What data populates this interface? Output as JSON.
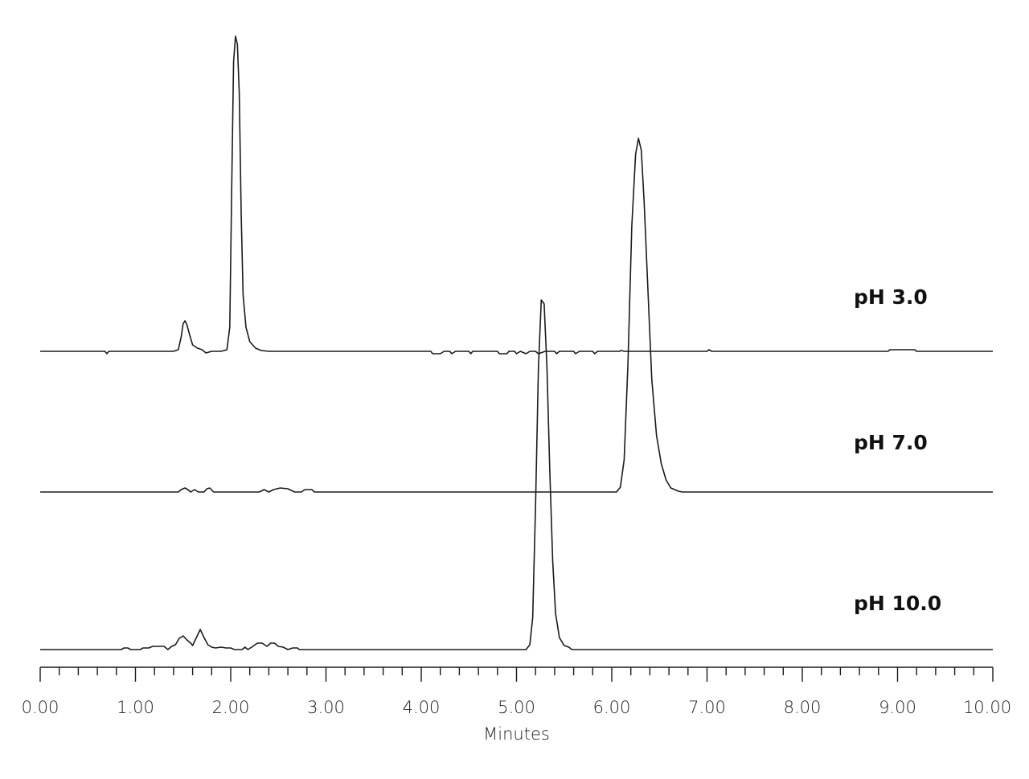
{
  "chart_data": {
    "type": "line",
    "xlabel": "Minutes",
    "ylabel": "",
    "xlim": [
      0,
      10
    ],
    "x_ticks": [
      "0.00",
      "1.00",
      "2.00",
      "3.00",
      "4.00",
      "5.00",
      "6.00",
      "7.00",
      "8.00",
      "9.00",
      "10.00"
    ],
    "minor_ticks_per_major": 5,
    "grid": false,
    "y_axis_shown": false,
    "stroke_color": "#1a1a1a",
    "series": [
      {
        "name": "pH 3.0",
        "baseline": 0,
        "points": [
          [
            0.0,
            0
          ],
          [
            0.68,
            0
          ],
          [
            0.7,
            -3
          ],
          [
            0.72,
            0
          ],
          [
            1.4,
            0
          ],
          [
            1.45,
            2
          ],
          [
            1.48,
            18
          ],
          [
            1.5,
            34
          ],
          [
            1.52,
            38
          ],
          [
            1.54,
            33
          ],
          [
            1.57,
            20
          ],
          [
            1.6,
            8
          ],
          [
            1.65,
            4
          ],
          [
            1.7,
            2
          ],
          [
            1.74,
            -2
          ],
          [
            1.8,
            0
          ],
          [
            1.9,
            0
          ],
          [
            1.96,
            2
          ],
          [
            1.99,
            30
          ],
          [
            2.01,
            200
          ],
          [
            2.03,
            360
          ],
          [
            2.05,
            392
          ],
          [
            2.07,
            382
          ],
          [
            2.09,
            320
          ],
          [
            2.11,
            170
          ],
          [
            2.13,
            70
          ],
          [
            2.16,
            30
          ],
          [
            2.2,
            12
          ],
          [
            2.26,
            4
          ],
          [
            2.32,
            1
          ],
          [
            2.4,
            0
          ],
          [
            4.1,
            0
          ],
          [
            4.12,
            -3
          ],
          [
            4.2,
            -3
          ],
          [
            4.24,
            0
          ],
          [
            4.3,
            0
          ],
          [
            4.32,
            -3
          ],
          [
            4.36,
            0
          ],
          [
            4.5,
            0
          ],
          [
            4.52,
            -3
          ],
          [
            4.54,
            0
          ],
          [
            4.8,
            0
          ],
          [
            4.82,
            -3
          ],
          [
            4.9,
            -3
          ],
          [
            4.92,
            0
          ],
          [
            4.98,
            0
          ],
          [
            5.0,
            -3
          ],
          [
            5.04,
            0
          ],
          [
            5.1,
            -3
          ],
          [
            5.14,
            0
          ],
          [
            5.2,
            0
          ],
          [
            5.23,
            -3
          ],
          [
            5.3,
            0
          ],
          [
            5.4,
            0
          ],
          [
            5.42,
            -3
          ],
          [
            5.45,
            0
          ],
          [
            5.6,
            0
          ],
          [
            5.62,
            -3
          ],
          [
            5.66,
            0
          ],
          [
            5.8,
            0
          ],
          [
            5.82,
            -3
          ],
          [
            5.85,
            0
          ],
          [
            6.08,
            0
          ],
          [
            6.1,
            1
          ],
          [
            6.13,
            0
          ],
          [
            7.0,
            0
          ],
          [
            7.02,
            2
          ],
          [
            7.05,
            0
          ],
          [
            8.9,
            0
          ],
          [
            8.92,
            2
          ],
          [
            9.18,
            2
          ],
          [
            9.2,
            0
          ],
          [
            10.0,
            0
          ]
        ]
      },
      {
        "name": "pH 7.0",
        "baseline": 0,
        "points": [
          [
            0.0,
            0
          ],
          [
            1.45,
            0
          ],
          [
            1.48,
            3
          ],
          [
            1.52,
            5
          ],
          [
            1.55,
            3
          ],
          [
            1.58,
            0
          ],
          [
            1.62,
            3
          ],
          [
            1.66,
            0
          ],
          [
            1.72,
            0
          ],
          [
            1.75,
            4
          ],
          [
            1.78,
            5
          ],
          [
            1.82,
            0
          ],
          [
            2.3,
            0
          ],
          [
            2.35,
            3
          ],
          [
            2.4,
            0
          ],
          [
            2.45,
            3
          ],
          [
            2.52,
            5
          ],
          [
            2.6,
            4
          ],
          [
            2.67,
            0
          ],
          [
            2.74,
            0
          ],
          [
            2.78,
            3
          ],
          [
            2.85,
            3
          ],
          [
            2.88,
            0
          ],
          [
            6.05,
            0
          ],
          [
            6.09,
            6
          ],
          [
            6.13,
            40
          ],
          [
            6.17,
            160
          ],
          [
            6.21,
            330
          ],
          [
            6.25,
            420
          ],
          [
            6.28,
            440
          ],
          [
            6.31,
            425
          ],
          [
            6.34,
            360
          ],
          [
            6.38,
            250
          ],
          [
            6.42,
            140
          ],
          [
            6.47,
            70
          ],
          [
            6.52,
            35
          ],
          [
            6.57,
            15
          ],
          [
            6.62,
            5
          ],
          [
            6.7,
            1
          ],
          [
            6.74,
            0
          ],
          [
            10.0,
            0
          ]
        ]
      },
      {
        "name": "pH 10.0",
        "baseline": 0,
        "points": [
          [
            0.0,
            0
          ],
          [
            0.85,
            0
          ],
          [
            0.88,
            2
          ],
          [
            0.92,
            2
          ],
          [
            0.95,
            0
          ],
          [
            1.05,
            0
          ],
          [
            1.08,
            2
          ],
          [
            1.14,
            2
          ],
          [
            1.18,
            4
          ],
          [
            1.3,
            4
          ],
          [
            1.34,
            0
          ],
          [
            1.38,
            4
          ],
          [
            1.42,
            6
          ],
          [
            1.46,
            14
          ],
          [
            1.5,
            17
          ],
          [
            1.54,
            12
          ],
          [
            1.58,
            8
          ],
          [
            1.6,
            5
          ],
          [
            1.64,
            15
          ],
          [
            1.68,
            25
          ],
          [
            1.72,
            15
          ],
          [
            1.76,
            6
          ],
          [
            1.8,
            3
          ],
          [
            1.84,
            2
          ],
          [
            1.9,
            3
          ],
          [
            1.95,
            2
          ],
          [
            2.0,
            2
          ],
          [
            2.04,
            0
          ],
          [
            2.12,
            0
          ],
          [
            2.15,
            3
          ],
          [
            2.18,
            0
          ],
          [
            2.22,
            3
          ],
          [
            2.28,
            8
          ],
          [
            2.33,
            8
          ],
          [
            2.38,
            4
          ],
          [
            2.42,
            8
          ],
          [
            2.46,
            8
          ],
          [
            2.5,
            4
          ],
          [
            2.55,
            3
          ],
          [
            2.6,
            0
          ],
          [
            2.65,
            2
          ],
          [
            2.7,
            2
          ],
          [
            2.72,
            0
          ],
          [
            5.1,
            0
          ],
          [
            5.14,
            6
          ],
          [
            5.17,
            40
          ],
          [
            5.2,
            180
          ],
          [
            5.23,
            350
          ],
          [
            5.26,
            435
          ],
          [
            5.29,
            430
          ],
          [
            5.32,
            350
          ],
          [
            5.35,
            220
          ],
          [
            5.38,
            110
          ],
          [
            5.41,
            45
          ],
          [
            5.45,
            15
          ],
          [
            5.5,
            5
          ],
          [
            5.55,
            3
          ],
          [
            5.58,
            0
          ],
          [
            10.0,
            0
          ]
        ]
      }
    ]
  }
}
